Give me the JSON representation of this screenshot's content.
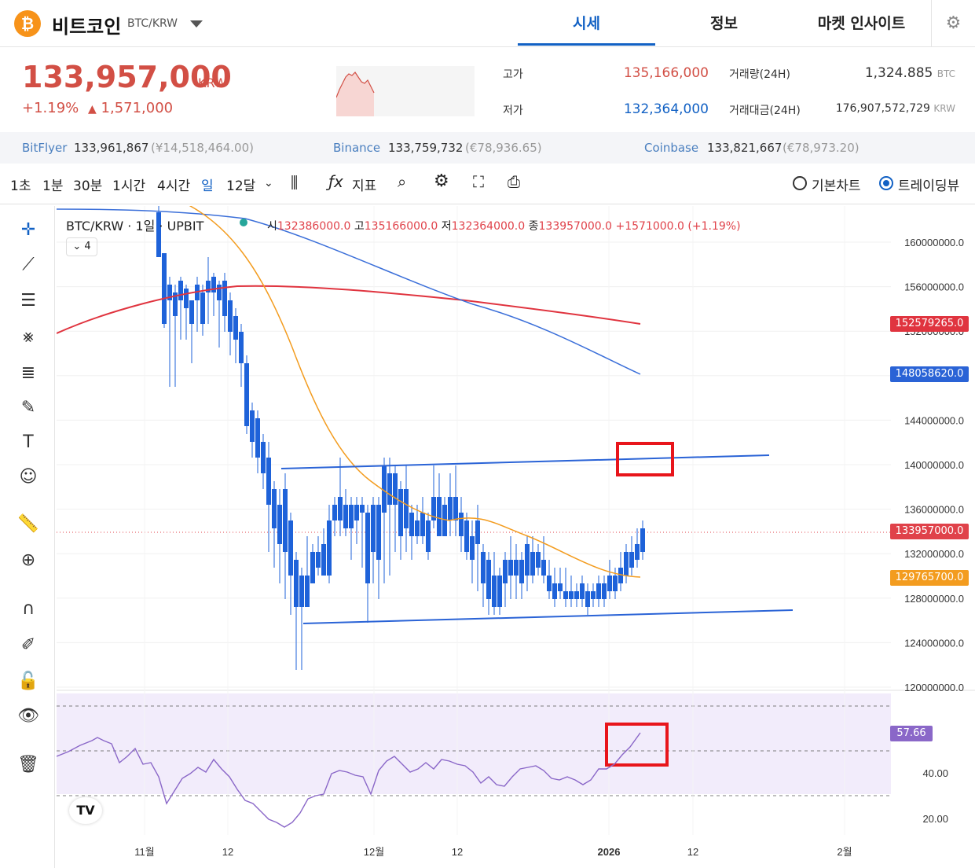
{
  "header": {
    "coin_symbol": "₿",
    "coin_name": "비트코인",
    "pair": "BTC/KRW",
    "tabs": [
      {
        "label": "시세"
      },
      {
        "label": "정보"
      },
      {
        "label": "마켓 인사이트"
      }
    ]
  },
  "price": {
    "current": "133,957,000",
    "unit": "KRW",
    "change_pct": "+1.19%",
    "change_arrow": "▲",
    "change_abs": "1,571,000"
  },
  "stats": {
    "high_label": "고가",
    "high": "135,166,000",
    "low_label": "저가",
    "low": "132,364,000",
    "volume_label": "거래량(24H)",
    "volume": "1,324.885",
    "volume_unit": "BTC",
    "value_label": "거래대금(24H)",
    "value": "176,907,572,729",
    "value_unit": "KRW"
  },
  "exchanges": [
    {
      "name": "BitFlyer",
      "price": "133,961,867",
      "sub": "(¥14,518,464.00)"
    },
    {
      "name": "Binance",
      "price": "133,759,732",
      "sub": "(€78,936.65)"
    },
    {
      "name": "Coinbase",
      "price": "133,821,667",
      "sub": "(€78,973.20)"
    }
  ],
  "toolbar": {
    "intervals": [
      "1초",
      "1분",
      "30분",
      "1시간",
      "4시간",
      "일",
      "12달"
    ],
    "indicator_label": "지표",
    "basic_chart": "기본차트",
    "tradingview": "트레이딩뷰"
  },
  "legend": {
    "title": "BTC/KRW · 1일 · UPBIT",
    "o_label": "시",
    "o": "132386000.0",
    "h_label": "고",
    "h": "135166000.0",
    "l_label": "저",
    "l": "132364000.0",
    "c_label": "종",
    "c": "133957000.0",
    "chg": "+1571000.0",
    "chg_pct": "(+1.19%)",
    "collapse": "4"
  },
  "colors": {
    "up": "#e0424a",
    "down": "#1e62d9",
    "ma_short": "#f39c1f",
    "ma_mid": "#3b6fd9",
    "ma_long": "#e0343f",
    "rsi": "#8a67c8"
  },
  "chart_data": {
    "type": "candlestick",
    "price_axis_ticks": [
      "160000000.0",
      "156000000.0",
      "152000000.0",
      "148000000.0",
      "144000000.0",
      "140000000.0",
      "136000000.0",
      "132000000.0",
      "128000000.0",
      "124000000.0",
      "120000000.0"
    ],
    "price_tags": [
      {
        "value": "152579265.0",
        "color": "#e0343f"
      },
      {
        "value": "148058620.0",
        "color": "#2a63d6"
      },
      {
        "value": "133957000.0",
        "color": "#e0424a"
      },
      {
        "value": "129765700.0",
        "color": "#f39c1f"
      }
    ],
    "rsi_ticks": [
      "40.00",
      "20.00"
    ],
    "rsi_tag": "57.66",
    "time_labels": [
      "11월",
      "12",
      "12월",
      "12",
      "2026",
      "12",
      "2월"
    ]
  }
}
